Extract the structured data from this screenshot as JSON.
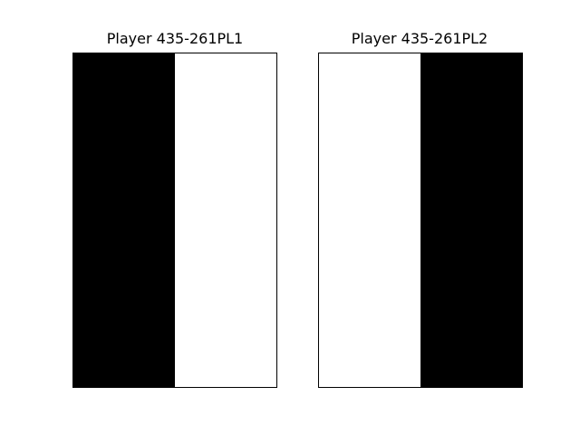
{
  "chart_data": [
    {
      "type": "heatmap",
      "title": "Player 435-261PL1",
      "grid": [
        [
          1,
          0
        ]
      ],
      "colors": {
        "1": "#000000",
        "0": "#ffffff"
      },
      "axes_visible": false
    },
    {
      "type": "heatmap",
      "title": "Player 435-261PL2",
      "grid": [
        [
          0,
          1
        ]
      ],
      "colors": {
        "1": "#000000",
        "0": "#ffffff"
      },
      "axes_visible": false
    }
  ]
}
